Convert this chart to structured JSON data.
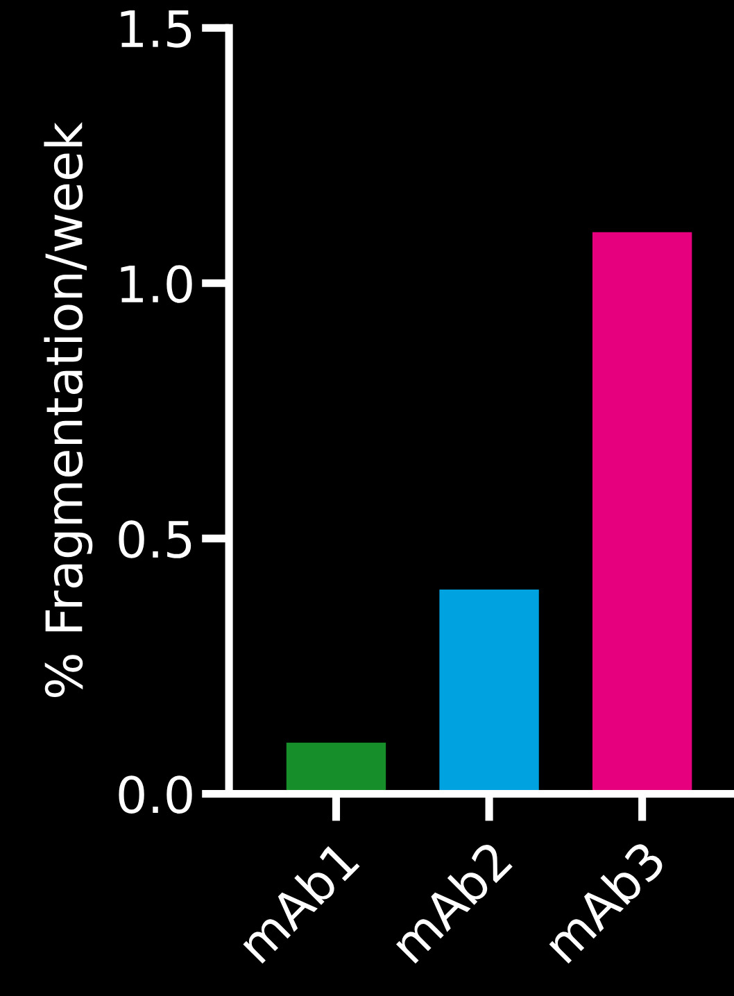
{
  "chart_data": {
    "type": "bar",
    "ylabel": "% Fragmentation/week",
    "categories": [
      "mAb1",
      "mAb2",
      "mAb3"
    ],
    "values": [
      0.1,
      0.4,
      1.1
    ],
    "colors": [
      "#168f2a",
      "#00a3e0",
      "#e6007e"
    ],
    "ylim": [
      0,
      1.5
    ],
    "yticks": [
      {
        "value": 0,
        "label": "0.0"
      },
      {
        "value": 0.5,
        "label": "0.5"
      },
      {
        "value": 1,
        "label": "1.0"
      },
      {
        "value": 1.5,
        "label": "1.5"
      }
    ],
    "grid": false,
    "legend": false
  }
}
